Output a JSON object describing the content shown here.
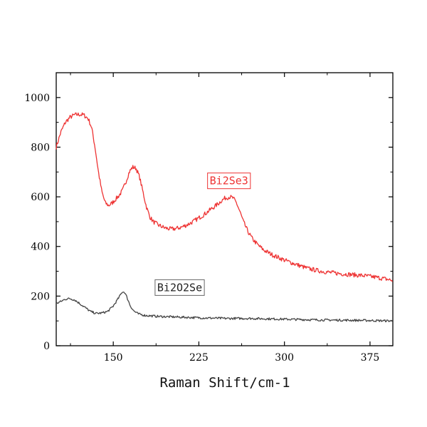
{
  "chart_data": {
    "type": "line",
    "title": "",
    "xlabel": "Raman Shift/cm-1",
    "ylabel": "",
    "xlim": [
      100,
      395
    ],
    "ylim": [
      0,
      1100
    ],
    "x_ticks": [
      150,
      225,
      300,
      375
    ],
    "y_ticks": [
      0,
      200,
      400,
      600,
      800,
      1000
    ],
    "x_tick_labels": [
      "150",
      "225",
      "300",
      "375"
    ],
    "y_tick_labels": [
      "0",
      "200",
      "400",
      "600",
      "800",
      "1000"
    ],
    "grid": false,
    "legend": "none",
    "series": [
      {
        "name": "Bi2Se3",
        "color": "#ee3333",
        "label_anchor": [
          232,
          650
        ],
        "points": [
          [
            100,
            800
          ],
          [
            104,
            860
          ],
          [
            108,
            900
          ],
          [
            112,
            920
          ],
          [
            116,
            930
          ],
          [
            120,
            932
          ],
          [
            124,
            930
          ],
          [
            128,
            915
          ],
          [
            131,
            880
          ],
          [
            134,
            800
          ],
          [
            137,
            700
          ],
          [
            140,
            620
          ],
          [
            143,
            575
          ],
          [
            146,
            565
          ],
          [
            149,
            575
          ],
          [
            152,
            590
          ],
          [
            155,
            605
          ],
          [
            158,
            625
          ],
          [
            161,
            660
          ],
          [
            164,
            700
          ],
          [
            167,
            720
          ],
          [
            170,
            715
          ],
          [
            173,
            680
          ],
          [
            176,
            620
          ],
          [
            179,
            560
          ],
          [
            182,
            520
          ],
          [
            185,
            500
          ],
          [
            190,
            485
          ],
          [
            195,
            475
          ],
          [
            200,
            470
          ],
          [
            205,
            472
          ],
          [
            210,
            478
          ],
          [
            215,
            488
          ],
          [
            220,
            500
          ],
          [
            225,
            515
          ],
          [
            230,
            530
          ],
          [
            235,
            548
          ],
          [
            240,
            565
          ],
          [
            245,
            585
          ],
          [
            248,
            595
          ],
          [
            252,
            600
          ],
          [
            255,
            595
          ],
          [
            258,
            575
          ],
          [
            261,
            540
          ],
          [
            264,
            500
          ],
          [
            268,
            460
          ],
          [
            272,
            430
          ],
          [
            277,
            405
          ],
          [
            282,
            385
          ],
          [
            290,
            365
          ],
          [
            300,
            345
          ],
          [
            310,
            328
          ],
          [
            320,
            312
          ],
          [
            330,
            302
          ],
          [
            340,
            295
          ],
          [
            350,
            290
          ],
          [
            360,
            286
          ],
          [
            370,
            282
          ],
          [
            380,
            276
          ],
          [
            390,
            268
          ],
          [
            395,
            262
          ]
        ]
      },
      {
        "name": "Bi2O2Se",
        "color": "#444444",
        "label_anchor": [
          186,
          220
        ],
        "points": [
          [
            100,
            170
          ],
          [
            104,
            178
          ],
          [
            108,
            188
          ],
          [
            112,
            190
          ],
          [
            116,
            185
          ],
          [
            120,
            172
          ],
          [
            125,
            155
          ],
          [
            130,
            138
          ],
          [
            135,
            130
          ],
          [
            140,
            132
          ],
          [
            145,
            138
          ],
          [
            150,
            160
          ],
          [
            155,
            195
          ],
          [
            158,
            218
          ],
          [
            160,
            215
          ],
          [
            162,
            195
          ],
          [
            165,
            160
          ],
          [
            168,
            140
          ],
          [
            172,
            128
          ],
          [
            178,
            122
          ],
          [
            190,
            118
          ],
          [
            210,
            115
          ],
          [
            230,
            112
          ],
          [
            250,
            110
          ],
          [
            270,
            110
          ],
          [
            290,
            108
          ],
          [
            310,
            106
          ],
          [
            330,
            104
          ],
          [
            350,
            103
          ],
          [
            370,
            102
          ],
          [
            395,
            100
          ]
        ]
      }
    ],
    "annotations": [
      {
        "text": "Bi2Se3",
        "color": "#ee3333"
      },
      {
        "text": "Bi2O2Se",
        "color": "#222222"
      }
    ]
  }
}
